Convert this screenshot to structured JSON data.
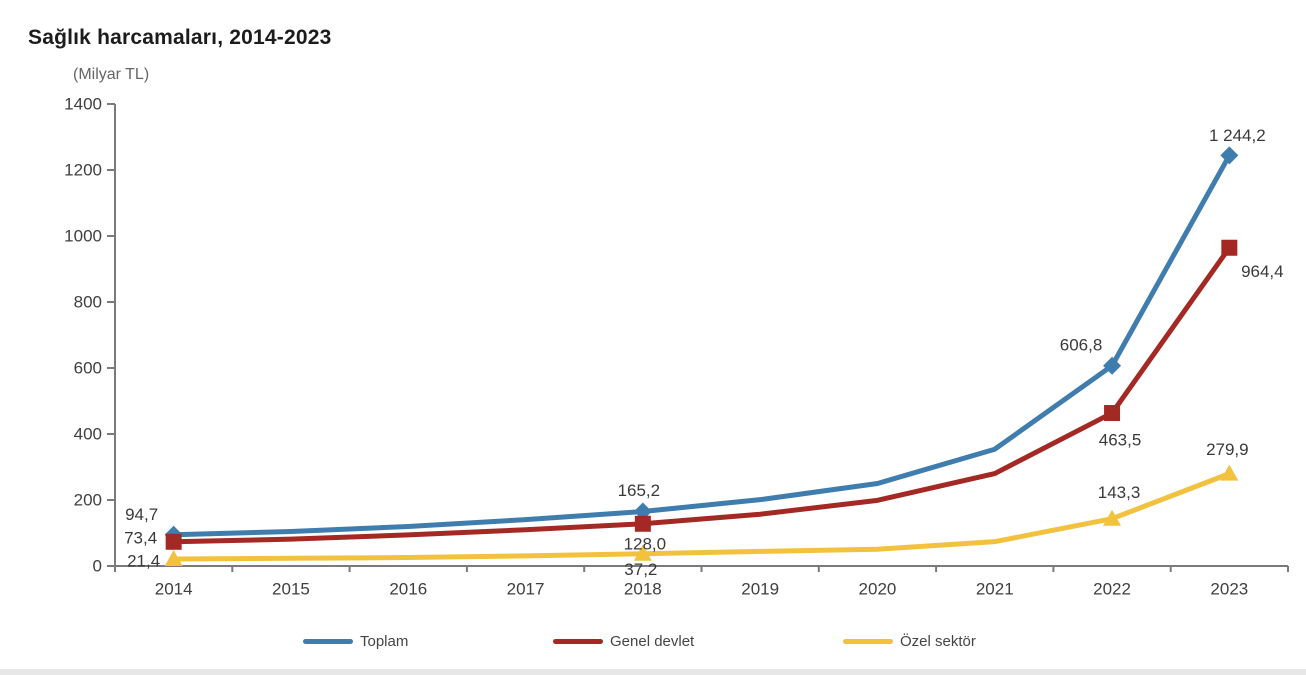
{
  "chart_data": {
    "type": "line",
    "title": "Sağlık harcamaları, 2014-2023",
    "unit_label": "(Milyar TL)",
    "categories": [
      "2014",
      "2015",
      "2016",
      "2017",
      "2018",
      "2019",
      "2020",
      "2021",
      "2022",
      "2023"
    ],
    "ylim": [
      0,
      1400
    ],
    "ytick_step": 200,
    "yticks": [
      "0",
      "200",
      "400",
      "600",
      "800",
      "1000",
      "1200",
      "1400"
    ],
    "grid": "off",
    "legend_position": "bottom",
    "axis_color": "#7a7a7a",
    "text_color": "#3f3f3f",
    "series": [
      {
        "name": "Toplam",
        "color": "#3E7DAE",
        "marker": "diamond",
        "values": [
          94.7,
          104.6,
          119.8,
          140.6,
          165.2,
          201.0,
          249.9,
          353.9,
          606.8,
          1244.2
        ],
        "point_labels": [
          {
            "category": "2014",
            "text": "94,7",
            "dx": -32,
            "dy": -20
          },
          {
            "category": "2018",
            "text": "165,2",
            "dx": -4,
            "dy": -21
          },
          {
            "category": "2022",
            "text": "606,8",
            "dx": -31,
            "dy": -21
          },
          {
            "category": "2023",
            "text": "1 244,2",
            "dx": 8,
            "dy": -20
          }
        ]
      },
      {
        "name": "Genel devlet",
        "color": "#A42823",
        "marker": "square",
        "values": [
          73.4,
          81.3,
          94.3,
          109.9,
          128.0,
          156.8,
          199.0,
          280.1,
          463.5,
          964.4
        ],
        "point_labels": [
          {
            "category": "2014",
            "text": "73,4",
            "dx": -33,
            "dy": -4
          },
          {
            "category": "2018",
            "text": "128,0",
            "dx": 2,
            "dy": 20
          },
          {
            "category": "2022",
            "text": "463,5",
            "dx": 8,
            "dy": 27
          },
          {
            "category": "2023",
            "text": "964,4",
            "dx": 33,
            "dy": 24
          }
        ]
      },
      {
        "name": "Özel sektör",
        "color": "#F2C23E",
        "marker": "triangle",
        "values": [
          21.4,
          23.3,
          25.6,
          30.7,
          37.2,
          44.2,
          50.9,
          73.8,
          143.3,
          279.9
        ],
        "point_labels": [
          {
            "category": "2014",
            "text": "21,4",
            "dx": -30,
            "dy": 2
          },
          {
            "category": "2018",
            "text": "37,2",
            "dx": -2,
            "dy": 16
          },
          {
            "category": "2022",
            "text": "143,3",
            "dx": 7,
            "dy": -26
          },
          {
            "category": "2023",
            "text": "279,9",
            "dx": -2,
            "dy": -24
          }
        ]
      }
    ]
  }
}
